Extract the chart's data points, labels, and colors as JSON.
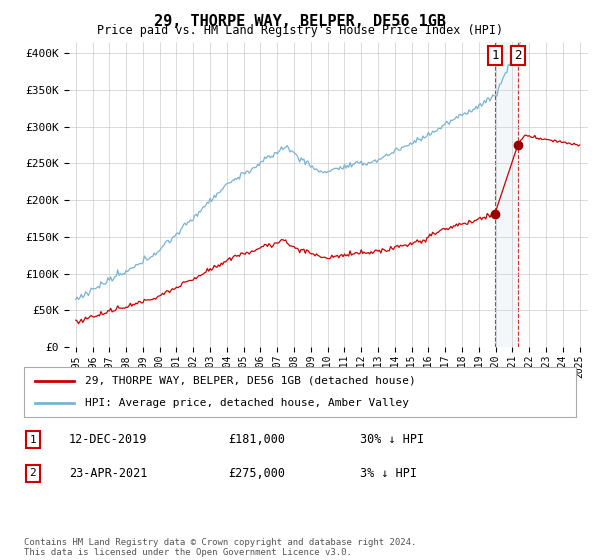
{
  "title": "29, THORPE WAY, BELPER, DE56 1GB",
  "subtitle": "Price paid vs. HM Land Registry's House Price Index (HPI)",
  "ylim": [
    0,
    420000
  ],
  "yticks": [
    0,
    50000,
    100000,
    150000,
    200000,
    250000,
    300000,
    350000,
    400000
  ],
  "ytick_labels": [
    "£0",
    "£50K",
    "£100K",
    "£150K",
    "£200K",
    "£250K",
    "£300K",
    "£350K",
    "£400K"
  ],
  "sale1": {
    "date": "12-DEC-2019",
    "price": 181000,
    "pct": "30% ↓ HPI",
    "label": "1"
  },
  "sale2": {
    "date": "23-APR-2021",
    "price": 275000,
    "pct": "3% ↓ HPI",
    "label": "2"
  },
  "sale1_x": 2019.95,
  "sale2_x": 2021.32,
  "hpi_color": "#7ab3d4",
  "price_color": "#cc0000",
  "legend_label1": "29, THORPE WAY, BELPER, DE56 1GB (detached house)",
  "legend_label2": "HPI: Average price, detached house, Amber Valley",
  "footer": "Contains HM Land Registry data © Crown copyright and database right 2024.\nThis data is licensed under the Open Government Licence v3.0.",
  "background_color": "#ffffff",
  "grid_color": "#cccccc",
  "xlim_left": 1994.6,
  "xlim_right": 2025.5
}
